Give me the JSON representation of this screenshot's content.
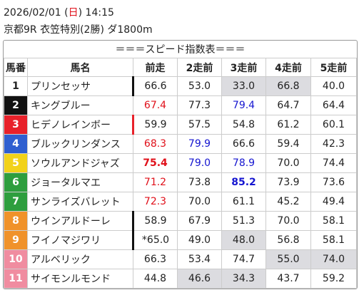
{
  "header": {
    "date": "2026/02/01",
    "weekday_open": "(",
    "weekday": "日",
    "weekday_close": ")",
    "time": "14:15",
    "race": "京都9R 衣笠特別(2勝) ダ1800m"
  },
  "table": {
    "title": "＝＝＝スピード指数表＝＝＝",
    "columns": [
      "馬番",
      "馬名",
      "前走",
      "2走前",
      "3走前",
      "4走前",
      "5走前"
    ],
    "rows": [
      [
        "1",
        "プリンセッサ",
        "66.6",
        "53.0",
        "33.0",
        "66.8",
        "40.0"
      ],
      [
        "2",
        "キングブルー",
        "67.4",
        "77.3",
        "79.4",
        "64.7",
        "64.4"
      ],
      [
        "3",
        "ヒデノレインボー",
        "59.9",
        "57.5",
        "54.8",
        "61.2",
        "60.1"
      ],
      [
        "4",
        "ブルックリンダンス",
        "68.3",
        "79.9",
        "66.6",
        "59.4",
        "42.3"
      ],
      [
        "5",
        "ソウルアンドジャズ",
        "75.4",
        "79.0",
        "78.9",
        "70.0",
        "74.4"
      ],
      [
        "6",
        "ジョータルマエ",
        "71.2",
        "73.8",
        "85.2",
        "73.9",
        "73.6"
      ],
      [
        "7",
        "サンライズバレット",
        "72.3",
        "70.0",
        "61.1",
        "45.2",
        "49.4"
      ],
      [
        "8",
        "ウインアルドーレ",
        "58.9",
        "67.9",
        "51.3",
        "70.0",
        "58.1"
      ],
      [
        "9",
        "フイノマジワリ",
        "*65.0",
        "49.0",
        "48.0",
        "56.8",
        "58.1"
      ],
      [
        "10",
        "アルベリック",
        "66.3",
        "53.4",
        "74.7",
        "55.0",
        "74.0"
      ],
      [
        "11",
        "サイモンルモンド",
        "44.8",
        "46.6",
        "34.3",
        "43.7",
        "59.2"
      ]
    ]
  }
}
